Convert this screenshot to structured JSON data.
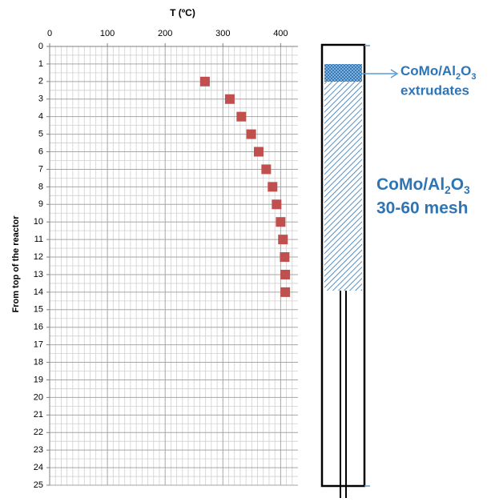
{
  "chart_data": {
    "type": "scatter",
    "x_label": "T (ºC)",
    "y_label": "From top of the reactor",
    "x": [
      269,
      312,
      332,
      349,
      362,
      375,
      386,
      393,
      400,
      404,
      407,
      408,
      408
    ],
    "values": [
      2,
      3,
      4,
      5,
      6,
      7,
      8,
      9,
      10,
      11,
      12,
      13,
      14
    ],
    "color": "#c0504d",
    "xlim": [
      0,
      430
    ],
    "xticks": [
      0,
      100,
      200,
      300,
      400
    ],
    "ylim": [
      0,
      25
    ],
    "yticks": [
      0,
      1,
      2,
      3,
      4,
      5,
      6,
      7,
      8,
      9,
      10,
      11,
      12,
      13,
      14,
      15,
      16,
      17,
      18,
      19,
      20,
      21,
      22,
      23,
      24,
      25
    ],
    "y_reversed": true,
    "grid": true
  },
  "diagram": {
    "extrudates_label": [
      "CoMo/Al",
      "2",
      "O",
      "3"
    ],
    "extrudates_line2": "extrudates",
    "mesh_label": [
      "CoMo/Al",
      "2",
      "O",
      "3"
    ],
    "mesh_line2": "30-60 mesh"
  }
}
